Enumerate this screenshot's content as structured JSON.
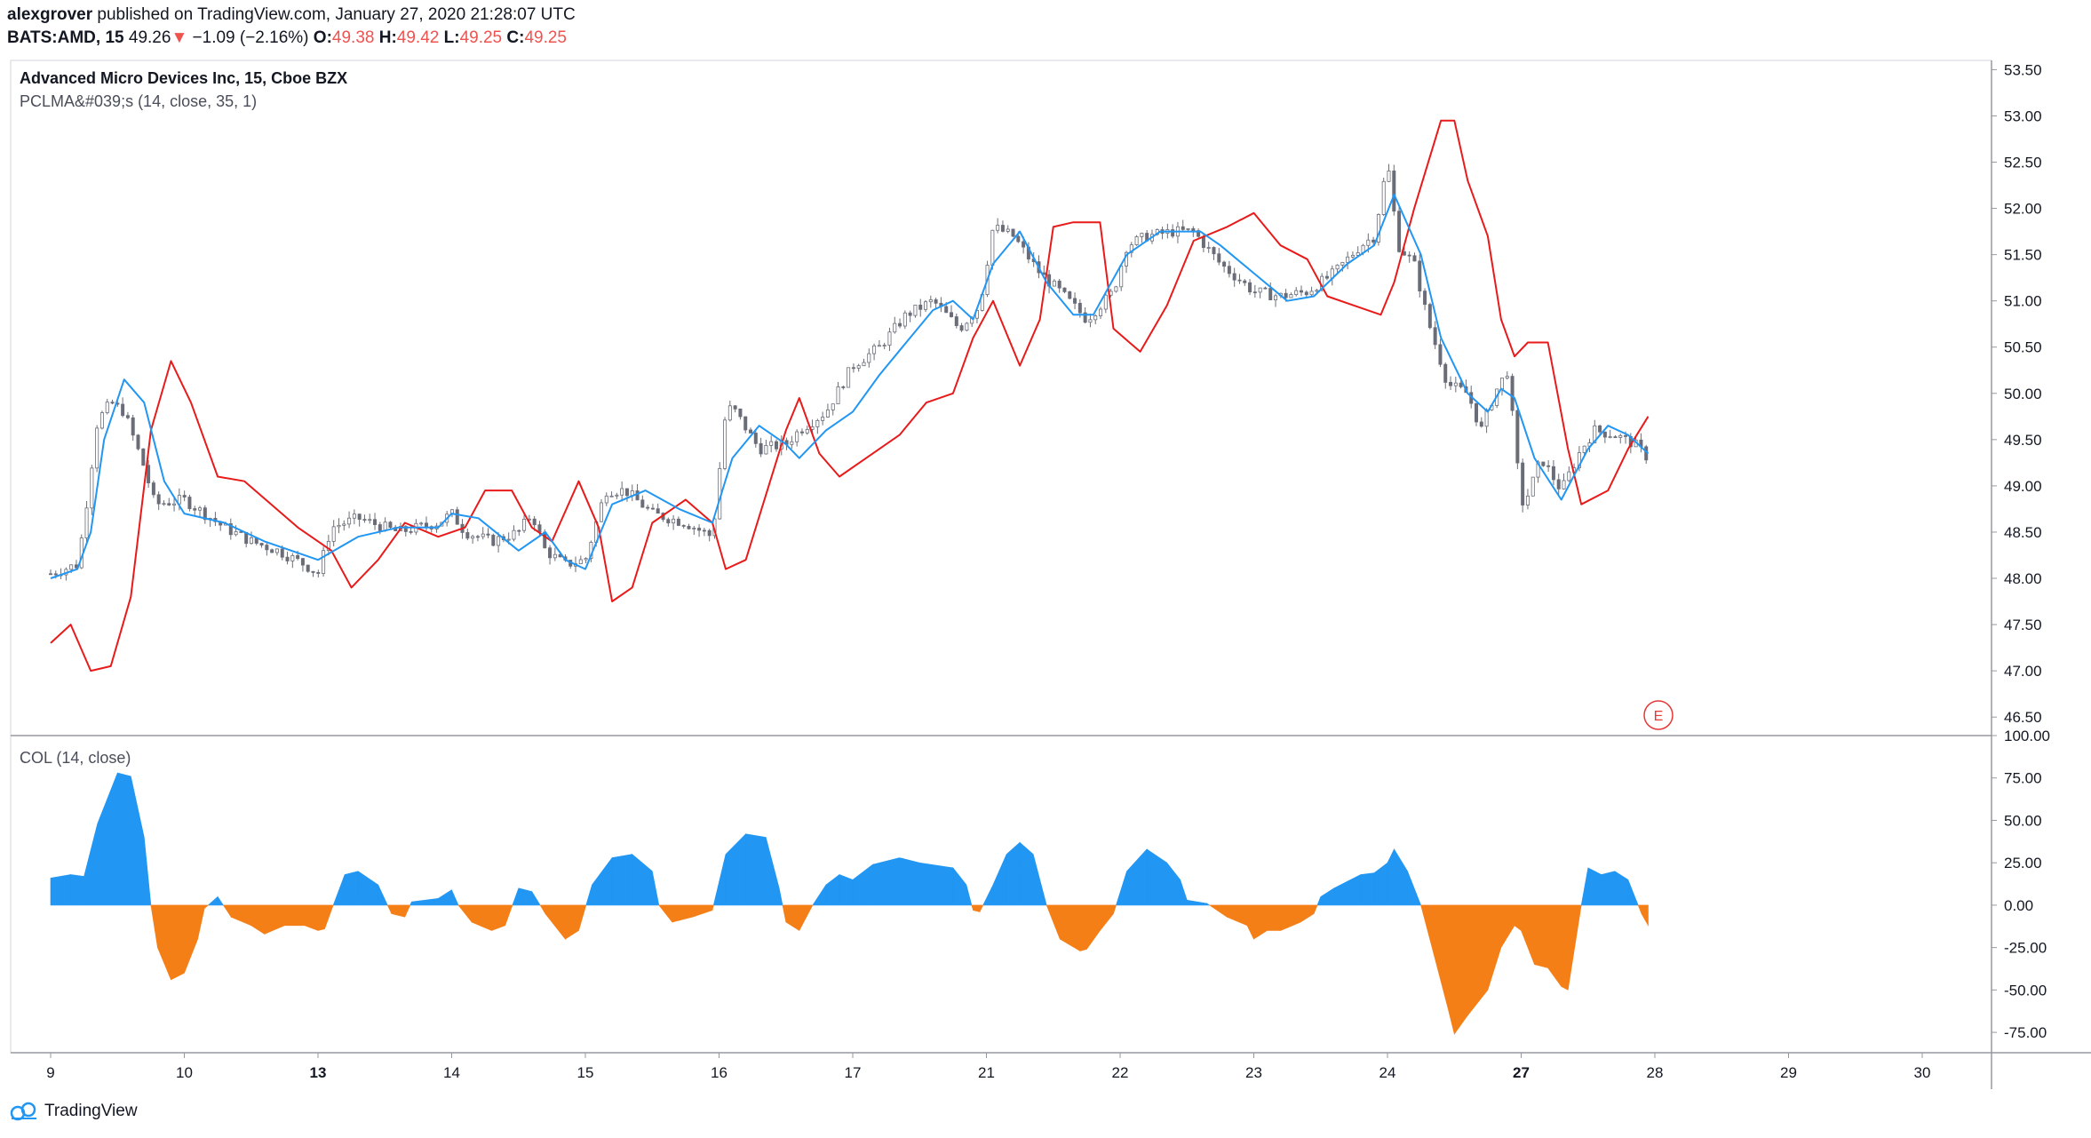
{
  "header": {
    "author": "alexgrover",
    "published": "published on TradingView.com, January 27, 2020 21:28:07 UTC",
    "symbol": "BATS:AMD, 15",
    "last": "49.26",
    "change_arrow": "▼",
    "change": "−1.09 (−2.16%)",
    "o_label": "O:",
    "o_value": "49.38",
    "h_label": "H:",
    "h_value": "49.42",
    "l_label": "L:",
    "l_value": "49.25",
    "c_label": "C:",
    "c_value": "49.25"
  },
  "legend": {
    "title": "Advanced Micro Devices Inc, 15, Cboe BZX",
    "indicator1": "PCLMA&#039;s (14, close, 35, 1)",
    "indicator2": "COL (14, close)"
  },
  "earnings_marker": "E",
  "footer": {
    "brand": "TradingView"
  },
  "colors": {
    "fast_ma": "#2196f3",
    "slow_ma": "#e81a1a",
    "osc_positive": "#2196f3",
    "osc_negative": "#f57f17",
    "candles": "#6a6d78"
  },
  "chart_data": [
    {
      "type": "candlestick",
      "ylim": [
        46.3,
        53.6
      ],
      "y_ticks": [
        "53.50",
        "53.00",
        "52.50",
        "52.00",
        "51.50",
        "51.00",
        "50.50",
        "50.00",
        "49.50",
        "49.00",
        "48.50",
        "48.00",
        "47.50",
        "47.00",
        "46.50"
      ],
      "x_ticks": [
        "9",
        "10",
        "13",
        "14",
        "15",
        "16",
        "17",
        "21",
        "22",
        "23",
        "24",
        "27",
        "28",
        "29",
        "30"
      ],
      "x_ticks_bold": [
        "13",
        "27"
      ],
      "price_path": [
        [
          0,
          48.05
        ],
        [
          0.2,
          48.15
        ],
        [
          0.25,
          48.6
        ],
        [
          0.35,
          49.7
        ],
        [
          0.45,
          49.9
        ],
        [
          0.55,
          49.8
        ],
        [
          0.7,
          49.2
        ],
        [
          0.78,
          48.8
        ],
        [
          1.0,
          48.85
        ],
        [
          1.1,
          48.75
        ],
        [
          1.3,
          48.55
        ],
        [
          1.5,
          48.4
        ],
        [
          1.7,
          48.3
        ],
        [
          1.9,
          48.15
        ],
        [
          2.0,
          48.05
        ],
        [
          2.1,
          48.55
        ],
        [
          2.3,
          48.65
        ],
        [
          2.6,
          48.5
        ],
        [
          2.9,
          48.6
        ],
        [
          3.0,
          48.7
        ],
        [
          3.1,
          48.5
        ],
        [
          3.3,
          48.4
        ],
        [
          3.5,
          48.5
        ],
        [
          3.6,
          48.7
        ],
        [
          3.7,
          48.3
        ],
        [
          3.85,
          48.15
        ],
        [
          4.0,
          48.2
        ],
        [
          4.15,
          48.95
        ],
        [
          4.3,
          48.95
        ],
        [
          4.5,
          48.7
        ],
        [
          4.75,
          48.6
        ],
        [
          4.95,
          48.45
        ],
        [
          5.05,
          49.8
        ],
        [
          5.1,
          49.85
        ],
        [
          5.3,
          49.4
        ],
        [
          5.5,
          49.45
        ],
        [
          5.6,
          49.6
        ],
        [
          5.7,
          49.7
        ],
        [
          5.8,
          49.8
        ],
        [
          6.0,
          50.3
        ],
        [
          6.2,
          50.5
        ],
        [
          6.4,
          50.85
        ],
        [
          6.6,
          51.0
        ],
        [
          6.8,
          50.7
        ],
        [
          6.95,
          50.95
        ],
        [
          7.05,
          51.8
        ],
        [
          7.2,
          51.7
        ],
        [
          7.4,
          51.3
        ],
        [
          7.55,
          51.1
        ],
        [
          7.75,
          50.8
        ],
        [
          7.95,
          51.1
        ],
        [
          8.05,
          51.6
        ],
        [
          8.2,
          51.7
        ],
        [
          8.4,
          51.75
        ],
        [
          8.55,
          51.75
        ],
        [
          8.75,
          51.4
        ],
        [
          9.0,
          51.1
        ],
        [
          9.2,
          51.05
        ],
        [
          9.4,
          51.1
        ],
        [
          9.6,
          51.3
        ],
        [
          9.8,
          51.6
        ],
        [
          9.9,
          51.7
        ],
        [
          10.0,
          52.5
        ],
        [
          10.08,
          51.6
        ],
        [
          10.2,
          51.4
        ],
        [
          10.3,
          50.8
        ],
        [
          10.45,
          50.1
        ],
        [
          10.6,
          50.0
        ],
        [
          10.7,
          49.6
        ],
        [
          10.8,
          50.0
        ],
        [
          10.9,
          50.25
        ],
        [
          11.0,
          48.8
        ],
        [
          11.05,
          48.9
        ],
        [
          11.15,
          49.3
        ],
        [
          11.3,
          48.95
        ],
        [
          11.45,
          49.4
        ],
        [
          11.55,
          49.6
        ],
        [
          11.7,
          49.55
        ],
        [
          11.85,
          49.45
        ],
        [
          11.95,
          49.3
        ]
      ],
      "fast_ma": [
        [
          0,
          48.0
        ],
        [
          0.2,
          48.1
        ],
        [
          0.3,
          48.5
        ],
        [
          0.4,
          49.5
        ],
        [
          0.55,
          50.15
        ],
        [
          0.7,
          49.9
        ],
        [
          0.85,
          49.05
        ],
        [
          1.0,
          48.7
        ],
        [
          1.3,
          48.6
        ],
        [
          1.6,
          48.4
        ],
        [
          1.8,
          48.3
        ],
        [
          2.0,
          48.2
        ],
        [
          2.3,
          48.45
        ],
        [
          2.6,
          48.55
        ],
        [
          2.9,
          48.55
        ],
        [
          3.0,
          48.7
        ],
        [
          3.2,
          48.65
        ],
        [
          3.5,
          48.3
        ],
        [
          3.7,
          48.5
        ],
        [
          3.85,
          48.2
        ],
        [
          4.0,
          48.1
        ],
        [
          4.2,
          48.8
        ],
        [
          4.45,
          48.95
        ],
        [
          4.7,
          48.75
        ],
        [
          4.95,
          48.6
        ],
        [
          5.1,
          49.3
        ],
        [
          5.3,
          49.65
        ],
        [
          5.5,
          49.45
        ],
        [
          5.6,
          49.3
        ],
        [
          5.8,
          49.6
        ],
        [
          6.0,
          49.8
        ],
        [
          6.2,
          50.2
        ],
        [
          6.4,
          50.55
        ],
        [
          6.6,
          50.9
        ],
        [
          6.75,
          51.0
        ],
        [
          6.9,
          50.8
        ],
        [
          7.05,
          51.4
        ],
        [
          7.25,
          51.75
        ],
        [
          7.45,
          51.2
        ],
        [
          7.65,
          50.85
        ],
        [
          7.8,
          50.85
        ],
        [
          8.05,
          51.5
        ],
        [
          8.3,
          51.75
        ],
        [
          8.6,
          51.75
        ],
        [
          8.75,
          51.6
        ],
        [
          9.0,
          51.3
        ],
        [
          9.25,
          51.0
        ],
        [
          9.45,
          51.05
        ],
        [
          9.7,
          51.4
        ],
        [
          9.9,
          51.6
        ],
        [
          10.05,
          52.15
        ],
        [
          10.25,
          51.5
        ],
        [
          10.4,
          50.6
        ],
        [
          10.6,
          50.0
        ],
        [
          10.75,
          49.8
        ],
        [
          10.85,
          50.05
        ],
        [
          10.95,
          49.95
        ],
        [
          11.1,
          49.3
        ],
        [
          11.3,
          48.85
        ],
        [
          11.5,
          49.4
        ],
        [
          11.65,
          49.65
        ],
        [
          11.8,
          49.55
        ],
        [
          11.95,
          49.35
        ]
      ],
      "slow_ma": [
        [
          0,
          47.3
        ],
        [
          0.15,
          47.5
        ],
        [
          0.3,
          47.0
        ],
        [
          0.45,
          47.05
        ],
        [
          0.6,
          47.8
        ],
        [
          0.75,
          49.6
        ],
        [
          0.9,
          50.35
        ],
        [
          1.05,
          49.9
        ],
        [
          1.25,
          49.1
        ],
        [
          1.45,
          49.05
        ],
        [
          1.65,
          48.8
        ],
        [
          1.85,
          48.55
        ],
        [
          2.1,
          48.3
        ],
        [
          2.25,
          47.9
        ],
        [
          2.45,
          48.2
        ],
        [
          2.65,
          48.6
        ],
        [
          2.9,
          48.45
        ],
        [
          3.1,
          48.55
        ],
        [
          3.25,
          48.95
        ],
        [
          3.45,
          48.95
        ],
        [
          3.6,
          48.55
        ],
        [
          3.75,
          48.4
        ],
        [
          3.95,
          49.05
        ],
        [
          4.1,
          48.55
        ],
        [
          4.2,
          47.75
        ],
        [
          4.35,
          47.9
        ],
        [
          4.5,
          48.6
        ],
        [
          4.75,
          48.85
        ],
        [
          4.95,
          48.6
        ],
        [
          5.05,
          48.1
        ],
        [
          5.2,
          48.2
        ],
        [
          5.35,
          48.9
        ],
        [
          5.5,
          49.6
        ],
        [
          5.6,
          49.95
        ],
        [
          5.75,
          49.35
        ],
        [
          5.9,
          49.1
        ],
        [
          6.1,
          49.3
        ],
        [
          6.35,
          49.55
        ],
        [
          6.55,
          49.9
        ],
        [
          6.75,
          50.0
        ],
        [
          6.9,
          50.6
        ],
        [
          7.05,
          51.0
        ],
        [
          7.25,
          50.3
        ],
        [
          7.4,
          50.8
        ],
        [
          7.5,
          51.8
        ],
        [
          7.65,
          51.85
        ],
        [
          7.85,
          51.85
        ],
        [
          7.95,
          50.7
        ],
        [
          8.15,
          50.45
        ],
        [
          8.35,
          50.95
        ],
        [
          8.55,
          51.65
        ],
        [
          8.8,
          51.8
        ],
        [
          9.0,
          51.95
        ],
        [
          9.2,
          51.6
        ],
        [
          9.4,
          51.45
        ],
        [
          9.55,
          51.05
        ],
        [
          9.75,
          50.95
        ],
        [
          9.95,
          50.85
        ],
        [
          10.05,
          51.2
        ],
        [
          10.2,
          52.0
        ],
        [
          10.4,
          52.95
        ],
        [
          10.5,
          52.95
        ],
        [
          10.6,
          52.3
        ],
        [
          10.75,
          51.7
        ],
        [
          10.85,
          50.8
        ],
        [
          10.95,
          50.4
        ],
        [
          11.05,
          50.55
        ],
        [
          11.2,
          50.55
        ],
        [
          11.35,
          49.4
        ],
        [
          11.45,
          48.8
        ],
        [
          11.65,
          48.95
        ],
        [
          11.8,
          49.4
        ],
        [
          11.95,
          49.75
        ]
      ],
      "candle_range": [
        0,
        11.95
      ]
    },
    {
      "type": "area",
      "title": "COL (14, close)",
      "ylim": [
        -87,
        100
      ],
      "y_ticks": [
        "100.00",
        "75.00",
        "50.00",
        "25.00",
        "0.00",
        "-25.00",
        "-50.00",
        "-75.00"
      ],
      "values": [
        [
          0,
          16
        ],
        [
          0.15,
          18
        ],
        [
          0.25,
          17
        ],
        [
          0.35,
          48
        ],
        [
          0.5,
          78
        ],
        [
          0.6,
          76
        ],
        [
          0.7,
          40
        ],
        [
          0.75,
          0
        ],
        [
          0.8,
          -25
        ],
        [
          0.9,
          -44
        ],
        [
          1.0,
          -40
        ],
        [
          1.1,
          -20
        ],
        [
          1.15,
          -2
        ],
        [
          1.25,
          5
        ],
        [
          1.35,
          -7
        ],
        [
          1.5,
          -12
        ],
        [
          1.6,
          -17
        ],
        [
          1.75,
          -12
        ],
        [
          1.9,
          -12
        ],
        [
          2.0,
          -15
        ],
        [
          2.05,
          -14
        ],
        [
          2.1,
          -3
        ],
        [
          2.2,
          18
        ],
        [
          2.3,
          20
        ],
        [
          2.45,
          12
        ],
        [
          2.55,
          -5
        ],
        [
          2.65,
          -7
        ],
        [
          2.7,
          2
        ],
        [
          2.9,
          4
        ],
        [
          3.0,
          9
        ],
        [
          3.05,
          0
        ],
        [
          3.15,
          -10
        ],
        [
          3.3,
          -15
        ],
        [
          3.4,
          -12
        ],
        [
          3.5,
          10
        ],
        [
          3.6,
          8
        ],
        [
          3.7,
          -5
        ],
        [
          3.85,
          -20
        ],
        [
          3.95,
          -15
        ],
        [
          4.05,
          12
        ],
        [
          4.2,
          28
        ],
        [
          4.35,
          30
        ],
        [
          4.5,
          20
        ],
        [
          4.55,
          0
        ],
        [
          4.65,
          -10
        ],
        [
          4.8,
          -7
        ],
        [
          4.95,
          -3
        ],
        [
          5.05,
          30
        ],
        [
          5.2,
          42
        ],
        [
          5.35,
          40
        ],
        [
          5.45,
          10
        ],
        [
          5.5,
          -10
        ],
        [
          5.6,
          -15
        ],
        [
          5.7,
          0
        ],
        [
          5.8,
          12
        ],
        [
          5.9,
          18
        ],
        [
          6.0,
          15
        ],
        [
          6.15,
          24
        ],
        [
          6.35,
          28
        ],
        [
          6.5,
          25
        ],
        [
          6.75,
          22
        ],
        [
          6.85,
          12
        ],
        [
          6.9,
          -3
        ],
        [
          6.95,
          -4
        ],
        [
          7.05,
          12
        ],
        [
          7.15,
          30
        ],
        [
          7.25,
          37
        ],
        [
          7.35,
          30
        ],
        [
          7.45,
          0
        ],
        [
          7.55,
          -20
        ],
        [
          7.7,
          -27
        ],
        [
          7.75,
          -26
        ],
        [
          7.85,
          -15
        ],
        [
          7.95,
          -5
        ],
        [
          8.05,
          20
        ],
        [
          8.2,
          33
        ],
        [
          8.35,
          25
        ],
        [
          8.45,
          15
        ],
        [
          8.5,
          3
        ],
        [
          8.65,
          1
        ],
        [
          8.8,
          -7
        ],
        [
          8.95,
          -12
        ],
        [
          9.0,
          -20
        ],
        [
          9.1,
          -15
        ],
        [
          9.2,
          -15
        ],
        [
          9.35,
          -10
        ],
        [
          9.45,
          -5
        ],
        [
          9.5,
          5
        ],
        [
          9.6,
          10
        ],
        [
          9.8,
          18
        ],
        [
          9.9,
          19
        ],
        [
          10.0,
          25
        ],
        [
          10.05,
          33
        ],
        [
          10.15,
          20
        ],
        [
          10.25,
          0
        ],
        [
          10.35,
          -30
        ],
        [
          10.45,
          -60
        ],
        [
          10.5,
          -76
        ],
        [
          10.6,
          -65
        ],
        [
          10.75,
          -50
        ],
        [
          10.85,
          -25
        ],
        [
          10.95,
          -12
        ],
        [
          11.0,
          -15
        ],
        [
          11.1,
          -35
        ],
        [
          11.2,
          -37
        ],
        [
          11.3,
          -48
        ],
        [
          11.35,
          -50
        ],
        [
          11.45,
          0
        ],
        [
          11.5,
          22
        ],
        [
          11.6,
          18
        ],
        [
          11.7,
          20
        ],
        [
          11.8,
          15
        ],
        [
          11.9,
          -5
        ],
        [
          11.95,
          -12
        ]
      ]
    }
  ]
}
